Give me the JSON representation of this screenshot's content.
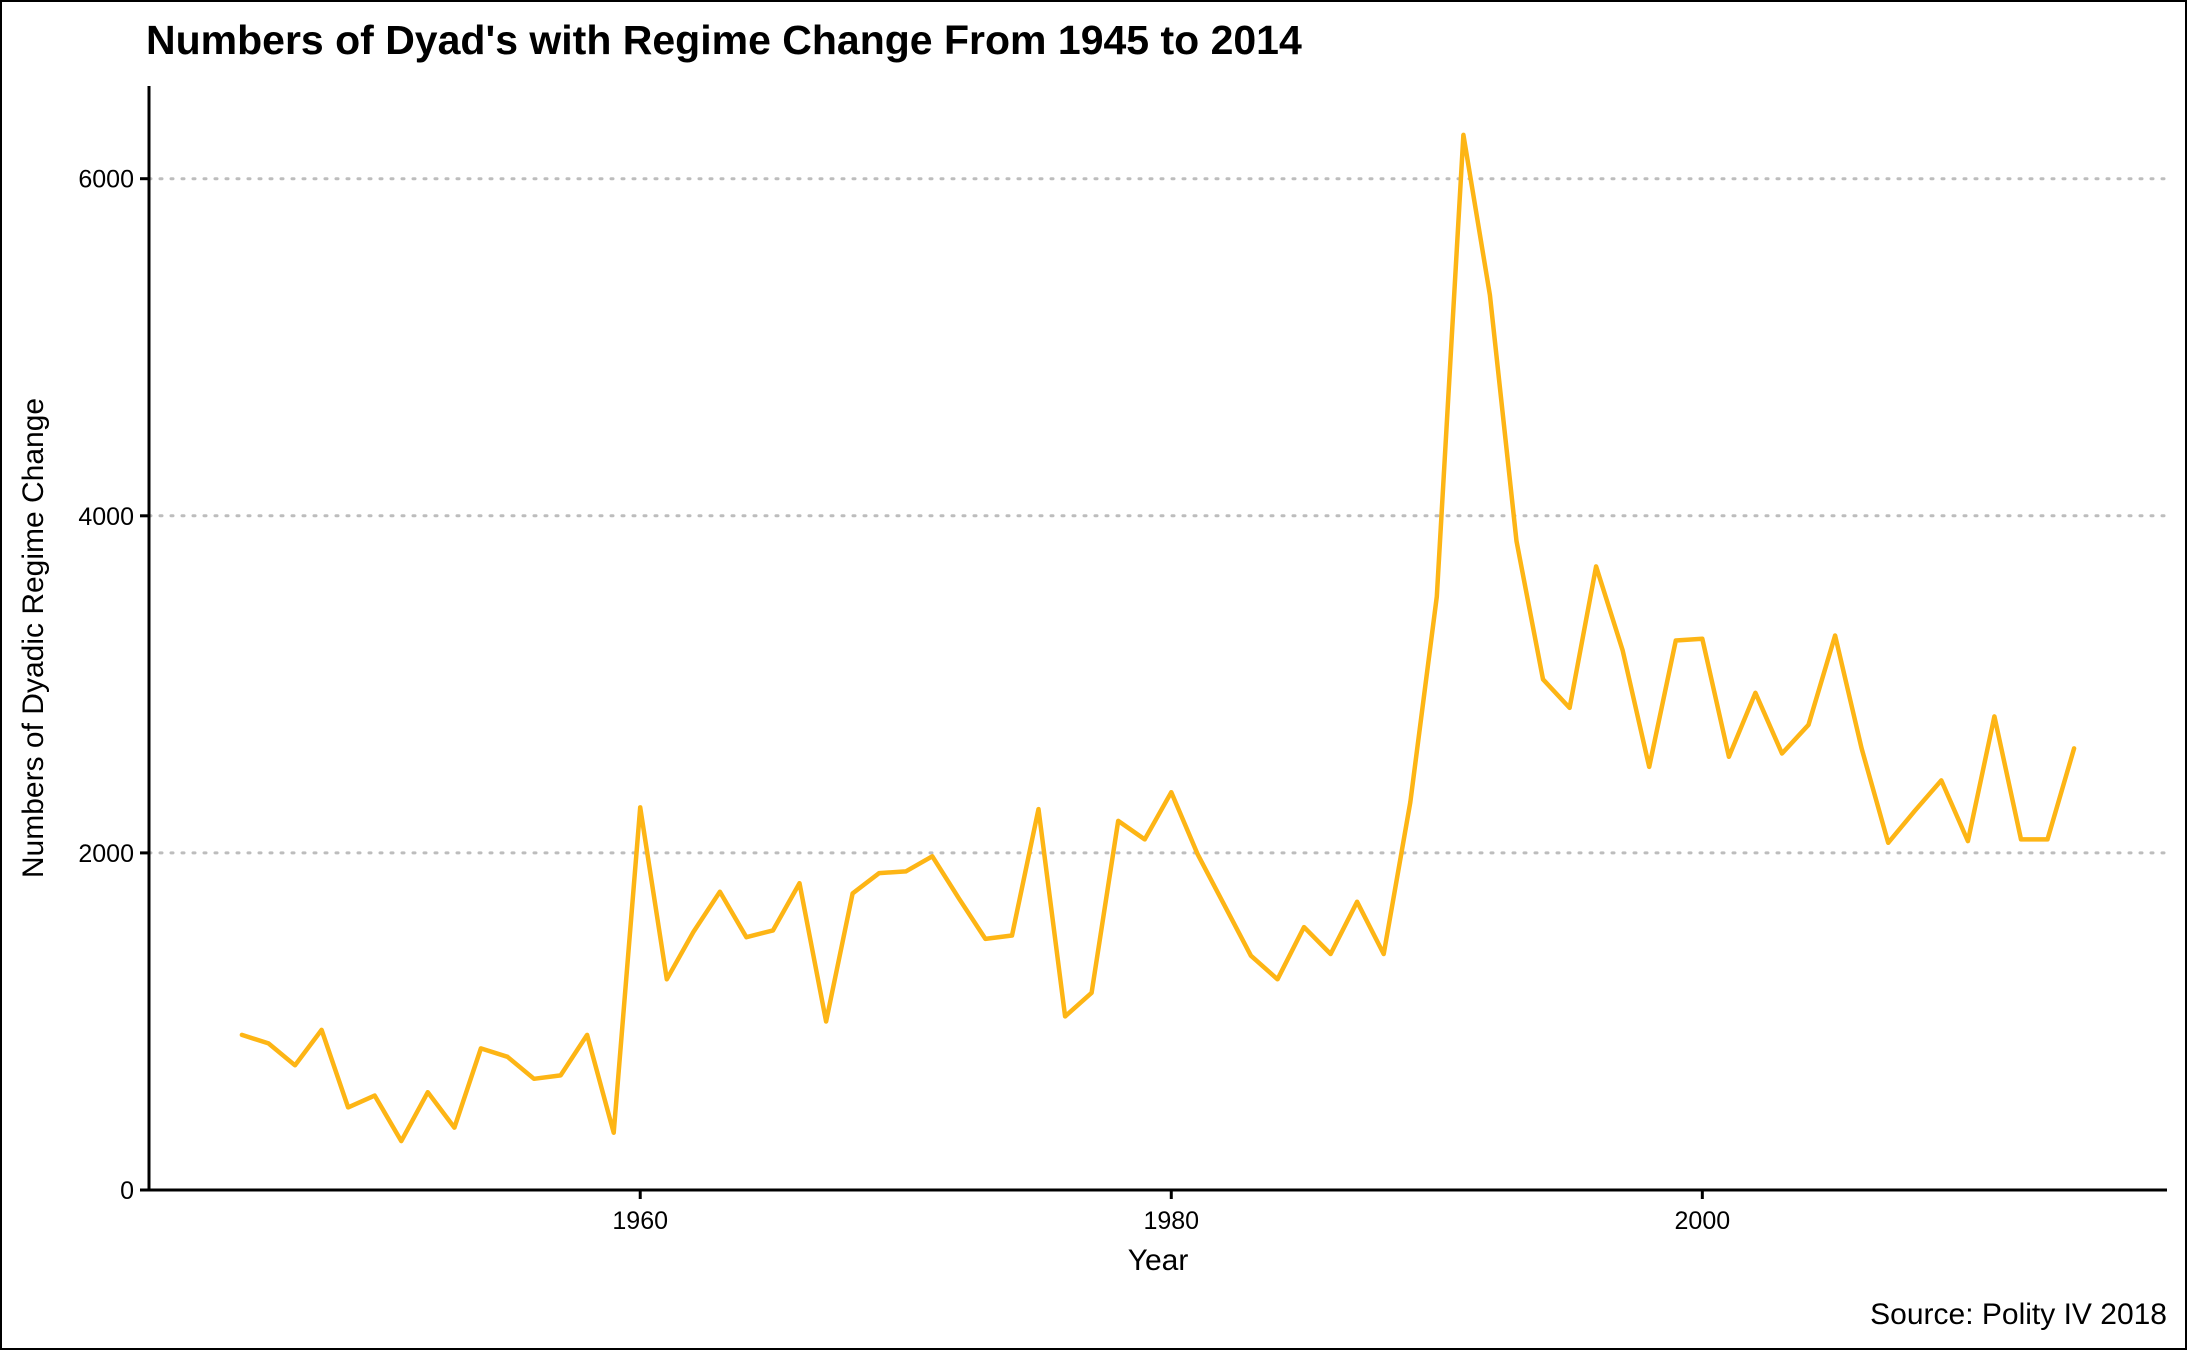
{
  "chart_data": {
    "type": "line",
    "title": "Numbers of Dyad's with Regime Change From 1945 to 2014",
    "subtitle": "",
    "xlabel": "Year",
    "ylabel": "Numbers of Dyadic Regime Change",
    "caption": "Source: Polity IV 2018",
    "xlim": [
      1941.5,
      2017.5
    ],
    "ylim": [
      0,
      6550
    ],
    "x_ticks": [
      1960,
      1980,
      2000
    ],
    "y_ticks": [
      0,
      2000,
      4000,
      6000
    ],
    "grid": "horizontal dotted major gridlines",
    "legend": "none",
    "line_color": "#FDB515",
    "series": [
      {
        "x": [
          1945,
          1946,
          1947,
          1948,
          1949,
          1950,
          1951,
          1952,
          1953,
          1954,
          1955,
          1956,
          1957,
          1958,
          1959,
          1960,
          1961,
          1962,
          1963,
          1964,
          1965,
          1966,
          1967,
          1968,
          1969,
          1970,
          1971,
          1972,
          1973,
          1974,
          1975,
          1976,
          1977,
          1978,
          1979,
          1980,
          1981,
          1982,
          1983,
          1984,
          1985,
          1986,
          1987,
          1988,
          1989,
          1990,
          1991,
          1992,
          1993,
          1994,
          1995,
          1996,
          1997,
          1998,
          1999,
          2000,
          2001,
          2002,
          2003,
          2004,
          2005,
          2006,
          2007,
          2008,
          2009,
          2010,
          2011,
          2012,
          2013,
          2014
        ],
        "values": [
          920,
          870,
          740,
          950,
          490,
          560,
          290,
          580,
          370,
          840,
          790,
          660,
          680,
          920,
          340,
          2270,
          1250,
          1530,
          1770,
          1500,
          1540,
          1820,
          1000,
          1760,
          1880,
          1890,
          1980,
          1730,
          1490,
          1510,
          2260,
          1030,
          1170,
          2190,
          2080,
          2360,
          1990,
          1690,
          1390,
          1250,
          1560,
          1400,
          1710,
          1400,
          2300,
          3520,
          6260,
          5310,
          3850,
          3030,
          2860,
          3700,
          3200,
          2510,
          3260,
          3270,
          2570,
          2950,
          2590,
          2760,
          3290,
          2620,
          2060,
          2250,
          2430,
          2070,
          2810,
          2080,
          2080,
          2620
        ]
      }
    ]
  }
}
